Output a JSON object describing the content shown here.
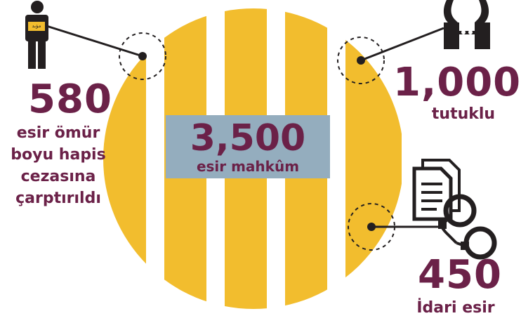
{
  "center": {
    "value": "3,500",
    "label": "esir mahkûm"
  },
  "left": {
    "value": "580",
    "lines": [
      "esir ömür",
      "boyu hapis",
      "cezasına",
      "çarptırıldı"
    ],
    "badge": "مؤبد"
  },
  "top_right": {
    "value": "1,000",
    "label": "tutuklu"
  },
  "bottom_right": {
    "value": "450",
    "label": "İdari esir"
  },
  "colors": {
    "bars": "#f2bd2e",
    "center_box": "#94adbe",
    "text": "#6b2148",
    "icon": "#231f20"
  },
  "icons": [
    "prisoner-icon",
    "handcuffed-hands-icon",
    "documents-icon",
    "handcuffs-icon"
  ]
}
